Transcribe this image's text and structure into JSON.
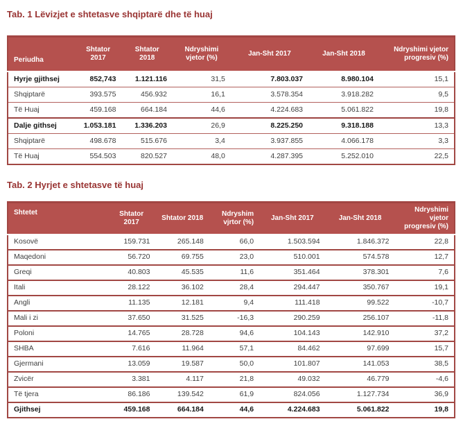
{
  "colors": {
    "header_bg": "#b5514e",
    "header_top_edge": "#a24543",
    "table_border": "#a14743",
    "title_text": "#993433",
    "body_text": "#3d3d3d"
  },
  "table1": {
    "title": "Tab. 1 Lëvizjet e shtetasve shqiptarë dhe të huaj",
    "columns": [
      "Periudha",
      "Shtator 2017",
      "Shtator 2018",
      "Ndryshimi vjetor (%)",
      "Jan-Sht 2017",
      "Jan-Sht 2018",
      "Ndryshimi vjetor progresiv (%)"
    ],
    "regular_when_bold": [
      2,
      5
    ],
    "rows": [
      {
        "label": "Hyrje gjithsej",
        "bold": true,
        "values": [
          "852,743",
          "1.121.116",
          "31,5",
          "7.803.037",
          "8.980.104",
          "15,1"
        ]
      },
      {
        "label": "Shqiptarë",
        "bold": false,
        "values": [
          "393.575",
          "456.932",
          "16,1",
          "3.578.354",
          "3.918.282",
          "9,5"
        ]
      },
      {
        "label": "Të Huaj",
        "bold": false,
        "values": [
          "459.168",
          "664.184",
          "44,6",
          "4.224.683",
          "5.061.822",
          "19,8"
        ]
      },
      {
        "label": "Dalje githsej",
        "bold": true,
        "values": [
          "1.053.181",
          "1.336.203",
          "26,9",
          "8.225.250",
          "9.318.188",
          "13,3"
        ]
      },
      {
        "label": "Shqiptarë",
        "bold": false,
        "values": [
          "498.678",
          "515.676",
          "3,4",
          "3.937.855",
          "4.066.178",
          "3,3"
        ]
      },
      {
        "label": "Të Huaj",
        "bold": false,
        "values": [
          "554.503",
          "820.527",
          "48,0",
          "4.287.395",
          "5.252.010",
          "22,5"
        ]
      }
    ]
  },
  "table2": {
    "title": "Tab. 2 Hyrjet e shtetasve të huaj",
    "columns": [
      "Shtetet",
      "Shtator 2017",
      "Shtator 2018",
      "Ndryshim vjrtor (%)",
      "Jan-Sht 2017",
      "Jan-Sht 2018",
      "Ndryshimi vjetor progresiv (%)"
    ],
    "regular_when_bold": [],
    "rows": [
      {
        "label": "Kosovë",
        "bold": false,
        "values": [
          "159.731",
          "265.148",
          "66,0",
          "1.503.594",
          "1.846.372",
          "22,8"
        ]
      },
      {
        "label": "Maqedoni",
        "bold": false,
        "values": [
          "56.720",
          "69.755",
          "23,0",
          "510.001",
          "574.578",
          "12,7"
        ]
      },
      {
        "label": "Greqi",
        "bold": false,
        "values": [
          "40.803",
          "45.535",
          "11,6",
          "351.464",
          "378.301",
          "7,6"
        ]
      },
      {
        "label": "Itali",
        "bold": false,
        "values": [
          "28.122",
          "36.102",
          "28,4",
          "294.447",
          "350.767",
          "19,1"
        ]
      },
      {
        "label": "Angli",
        "bold": false,
        "values": [
          "11.135",
          "12.181",
          "9,4",
          "111.418",
          "99.522",
          "-10,7"
        ]
      },
      {
        "label": "Mali i zi",
        "bold": false,
        "values": [
          "37.650",
          "31.525",
          "-16,3",
          "290.259",
          "256.107",
          "-11,8"
        ]
      },
      {
        "label": "Poloni",
        "bold": false,
        "values": [
          "14.765",
          "28.728",
          "94,6",
          "104.143",
          "142.910",
          "37,2"
        ]
      },
      {
        "label": "SHBA",
        "bold": false,
        "values": [
          "7.616",
          "11.964",
          "57,1",
          "84.462",
          "97.699",
          "15,7"
        ]
      },
      {
        "label": "Gjermani",
        "bold": false,
        "values": [
          "13.059",
          "19.587",
          "50,0",
          "101.807",
          "141.053",
          "38,5"
        ]
      },
      {
        "label": "Zvicër",
        "bold": false,
        "values": [
          "3.381",
          "4.117",
          "21,8",
          "49.032",
          "46.779",
          "-4,6"
        ]
      },
      {
        "label": "Të tjera",
        "bold": false,
        "values": [
          "86.186",
          "139.542",
          "61,9",
          "824.056",
          "1.127.734",
          "36,9"
        ]
      },
      {
        "label": "Gjithsej",
        "bold": true,
        "values": [
          "459.168",
          "664.184",
          "44,6",
          "4.224.683",
          "5.061.822",
          "19,8"
        ]
      }
    ]
  }
}
